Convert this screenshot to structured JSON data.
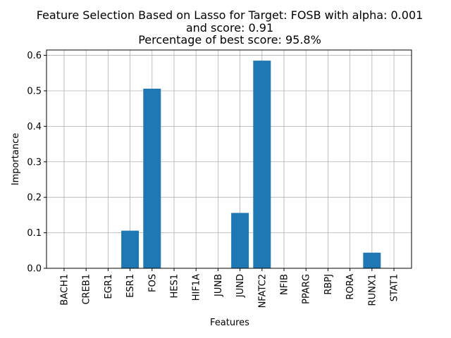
{
  "chart_data": {
    "type": "bar",
    "title_lines": [
      "Feature Selection Based on Lasso for Target: FOSB with alpha: 0.001",
      "and score: 0.91",
      "Percentage of best score: 95.8%"
    ],
    "xlabel": "Features",
    "ylabel": "Importance",
    "categories": [
      "BACH1",
      "CREB1",
      "EGR1",
      "ESR1",
      "FOS",
      "HES1",
      "HIF1A",
      "JUNB",
      "JUND",
      "NFATC2",
      "NFIB",
      "PPARG",
      "RBPJ",
      "RORA",
      "RUNX1",
      "STAT1"
    ],
    "values": [
      0,
      0,
      0,
      0.106,
      0.506,
      0,
      0,
      0,
      0.156,
      0.585,
      0,
      0,
      0,
      0,
      0.044,
      0
    ],
    "ylim": [
      0,
      0.615
    ],
    "yticks": [
      0.0,
      0.1,
      0.2,
      0.3,
      0.4,
      0.5,
      0.6
    ],
    "ytick_labels": [
      "0.0",
      "0.1",
      "0.2",
      "0.3",
      "0.4",
      "0.5",
      "0.6"
    ],
    "grid": true,
    "bar_color": "#1f77b4",
    "grid_color": "#b0b0b0"
  }
}
